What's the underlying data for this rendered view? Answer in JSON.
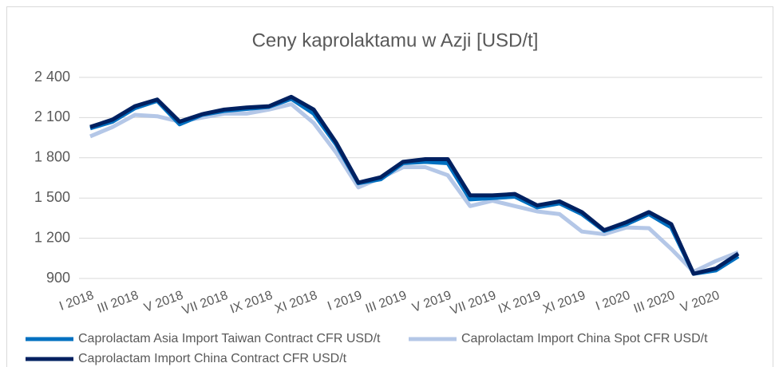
{
  "chart_data": {
    "type": "line",
    "title": "Ceny kaprolaktamu w Azji [USD/t]",
    "categories": [
      "I 2018",
      null,
      "III 2018",
      null,
      "V 2018",
      null,
      "VII 2018",
      null,
      "IX 2018",
      null,
      "XI 2018",
      null,
      "I 2019",
      null,
      "III 2019",
      null,
      "V 2019",
      null,
      "VII 2019",
      null,
      "IX 2019",
      null,
      "XI 2019",
      null,
      "I 2020",
      null,
      "III 2020",
      null,
      "V 2020",
      null
    ],
    "series": [
      {
        "name": "Caprolactam Asia Import Taiwan Contract CFR USD/t",
        "color": "#0070c0",
        "values": [
          2020,
          2070,
          2170,
          2225,
          2050,
          2120,
          2150,
          2165,
          2180,
          2240,
          2130,
          1900,
          1610,
          1640,
          1760,
          1770,
          1760,
          1490,
          1500,
          1510,
          1430,
          1460,
          1380,
          1255,
          1305,
          1380,
          1280,
          935,
          960,
          1065
        ]
      },
      {
        "name": "Caprolactam Import China Spot CFR USD/t",
        "color": "#b4c7e7",
        "values": [
          1960,
          2030,
          2120,
          2110,
          2070,
          2100,
          2130,
          2130,
          2160,
          2200,
          2060,
          1840,
          1580,
          1650,
          1730,
          1730,
          1670,
          1440,
          1480,
          1440,
          1400,
          1380,
          1250,
          1230,
          1280,
          1275,
          1120,
          950,
          1030,
          1095
        ]
      },
      {
        "name": "Caprolactam Import China Contract CFR USD/t",
        "color": "#002060",
        "values": [
          2030,
          2085,
          2185,
          2235,
          2070,
          2125,
          2160,
          2175,
          2185,
          2255,
          2160,
          1915,
          1615,
          1655,
          1770,
          1790,
          1790,
          1520,
          1520,
          1530,
          1445,
          1475,
          1395,
          1260,
          1320,
          1395,
          1305,
          935,
          975,
          1085
        ]
      }
    ],
    "ylim": [
      900,
      2400
    ],
    "yticks": [
      900,
      {
        "value": 1200,
        "label": "1 200"
      },
      {
        "value": 1500,
        "label": "1 500"
      },
      {
        "value": 1800,
        "label": "1 800"
      },
      {
        "value": 2100,
        "label": "2 100"
      },
      {
        "value": 2400,
        "label": "2 400"
      }
    ],
    "grid": true
  }
}
